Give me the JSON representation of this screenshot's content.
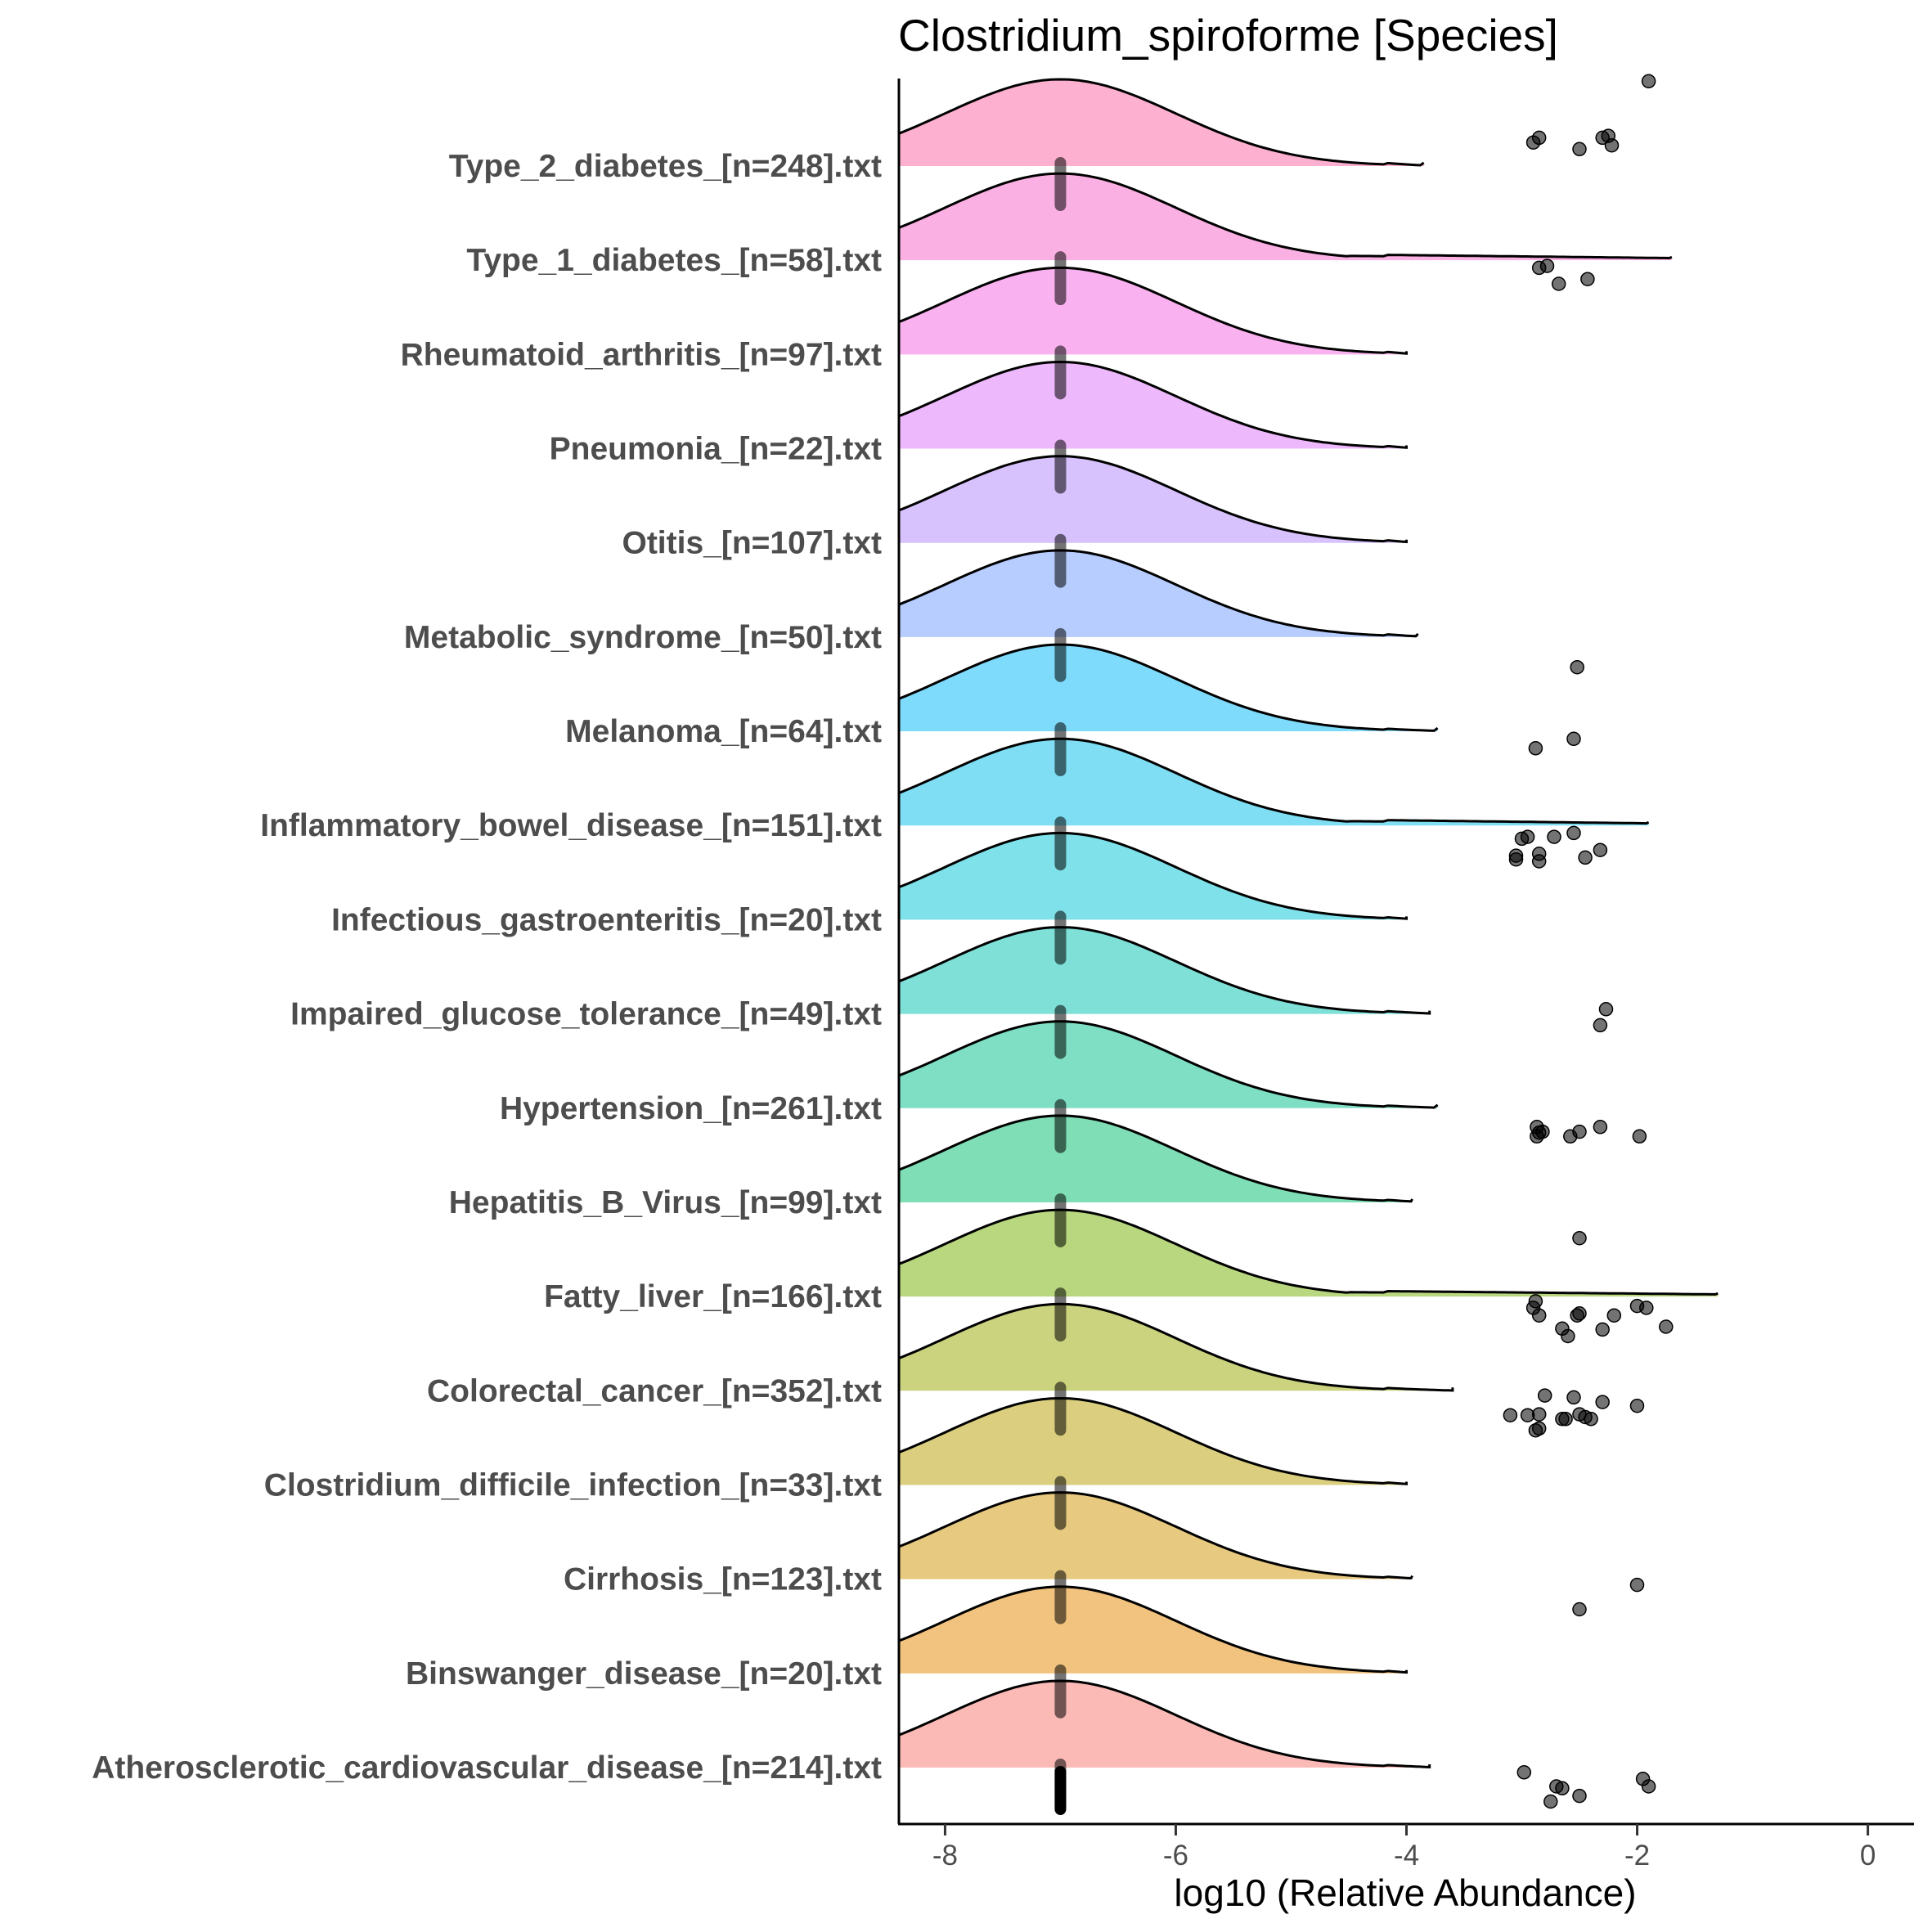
{
  "chart_data": {
    "type": "area",
    "subtype": "ridgeline-density with jittered outlier points",
    "title": "Clostridium_spiroforme [Species]",
    "xlabel": "log10 (Relative Abundance)",
    "ylabel": "",
    "xlim": [
      -8.4,
      0.4
    ],
    "xticks": [
      -8,
      -6,
      -4,
      -2,
      0
    ],
    "xtick_labels": [
      "-8",
      "-6",
      "-4",
      "-2",
      "0"
    ],
    "grid": false,
    "legend": "none",
    "median_x": -7,
    "series": [
      {
        "name": "Type_2_diabetes_[n=248].txt",
        "color": "#FB61A0",
        "tail_end": -3.85,
        "tail_height": 0.06,
        "outliers": [
          [
            -2.9,
            0.25
          ],
          [
            -2.85,
            0.3
          ],
          [
            -2.5,
            0.18
          ],
          [
            -2.3,
            0.3
          ],
          [
            -2.25,
            0.32
          ],
          [
            -2.22,
            0.22
          ],
          [
            -1.9,
            0.9
          ]
        ]
      },
      {
        "name": "Type_1_diabetes_[n=58].txt",
        "color": "#F862C8",
        "tail_end": -1.7,
        "tail_height": 0.05,
        "outliers": [
          [
            -2.85,
            -0.08
          ],
          [
            -2.78,
            -0.06
          ],
          [
            -2.68,
            -0.25
          ],
          [
            -2.43,
            -0.2
          ]
        ]
      },
      {
        "name": "Rheumatoid_arthritis_[n=97].txt",
        "color": "#F563E2",
        "tail_end": -4.0,
        "tail_height": 0.05,
        "outliers": []
      },
      {
        "name": "Pneumonia_[n=22].txt",
        "color": "#DD71FA",
        "tail_end": -4.0,
        "tail_height": 0.05,
        "outliers": []
      },
      {
        "name": "Otitis_[n=107].txt",
        "color": "#B186FE",
        "tail_end": -4.0,
        "tail_height": 0.05,
        "outliers": []
      },
      {
        "name": "Metabolic_syndrome_[n=50].txt",
        "color": "#6F9BFF",
        "tail_end": -3.9,
        "tail_height": 0.05,
        "outliers": []
      },
      {
        "name": "Melanoma_[n=64].txt",
        "color": "#00B8F8",
        "tail_end": -3.73,
        "tail_height": 0.04,
        "outliers": [
          [
            -2.52,
            0.68
          ],
          [
            -2.88,
            -0.18
          ],
          [
            -2.55,
            -0.08
          ]
        ]
      },
      {
        "name": "Inflammatory_bowel_disease_[n=151].txt",
        "color": "#00BEE8",
        "tail_end": -1.9,
        "tail_height": 0.05,
        "outliers": [
          [
            -3.0,
            -0.14
          ],
          [
            -2.95,
            -0.12
          ],
          [
            -2.72,
            -0.12
          ],
          [
            -2.55,
            -0.08
          ],
          [
            -3.05,
            -0.32
          ],
          [
            -2.85,
            -0.3
          ],
          [
            -2.45,
            -0.34
          ],
          [
            -2.32,
            -0.26
          ],
          [
            -3.05,
            -0.36
          ],
          [
            -2.85,
            -0.38
          ]
        ]
      },
      {
        "name": "Infectious_gastroenteritis_[n=20].txt",
        "color": "#00C3D3",
        "tail_end": -4.0,
        "tail_height": 0.04,
        "outliers": []
      },
      {
        "name": "Impaired_glucose_tolerance_[n=49].txt",
        "color": "#00C1B2",
        "tail_end": -3.8,
        "tail_height": 0.05,
        "outliers": [
          [
            -2.27,
            0.05
          ],
          [
            -2.32,
            -0.12
          ]
        ]
      },
      {
        "name": "Hypertension_[n=261].txt",
        "color": "#00C08B",
        "tail_end": -3.73,
        "tail_height": 0.04,
        "outliers": [
          [
            -2.87,
            -0.2
          ],
          [
            -2.85,
            -0.26
          ],
          [
            -2.82,
            -0.25
          ],
          [
            -2.87,
            -0.3
          ],
          [
            -2.58,
            -0.3
          ],
          [
            -2.5,
            -0.25
          ],
          [
            -2.32,
            -0.2
          ],
          [
            -1.98,
            -0.3
          ]
        ]
      },
      {
        "name": "Hepatitis_B_Virus_[n=99].txt",
        "color": "#00BE6C",
        "tail_end": -3.95,
        "tail_height": 0.04,
        "outliers": []
      },
      {
        "name": "Fatty_liver_[n=166].txt",
        "color": "#72B000",
        "tail_end": -1.3,
        "tail_height": 0.05,
        "outliers": [
          [
            -2.5,
            0.62
          ],
          [
            -2.88,
            -0.05
          ],
          [
            -2.9,
            -0.12
          ],
          [
            -2.85,
            -0.2
          ],
          [
            -2.5,
            -0.18
          ],
          [
            -2.52,
            -0.2
          ],
          [
            -2.65,
            -0.34
          ],
          [
            -2.6,
            -0.42
          ],
          [
            -2.3,
            -0.35
          ],
          [
            -2.2,
            -0.2
          ],
          [
            -2.0,
            -0.1
          ],
          [
            -1.92,
            -0.12
          ],
          [
            -1.75,
            -0.32
          ]
        ]
      },
      {
        "name": "Colorectal_cancer_[n=352].txt",
        "color": "#99A800",
        "tail_end": -3.6,
        "tail_height": 0.05,
        "outliers": [
          [
            -2.8,
            -0.05
          ],
          [
            -2.55,
            -0.07
          ],
          [
            -2.3,
            -0.12
          ],
          [
            -2.0,
            -0.16
          ],
          [
            -3.1,
            -0.26
          ],
          [
            -2.95,
            -0.26
          ],
          [
            -2.85,
            -0.25
          ],
          [
            -2.65,
            -0.3
          ],
          [
            -2.62,
            -0.3
          ],
          [
            -2.5,
            -0.25
          ],
          [
            -2.45,
            -0.28
          ],
          [
            -2.4,
            -0.3
          ],
          [
            -2.85,
            -0.4
          ],
          [
            -2.88,
            -0.42
          ]
        ]
      },
      {
        "name": "Clostridium_difficile_infection_[n=33].txt",
        "color": "#B79F00",
        "tail_end": -4.0,
        "tail_height": 0.04,
        "outliers": []
      },
      {
        "name": "Cirrhosis_[n=123].txt",
        "color": "#D09400",
        "tail_end": -3.95,
        "tail_height": 0.04,
        "outliers": [
          [
            -2.0,
            -0.06
          ],
          [
            -2.5,
            -0.32
          ]
        ]
      },
      {
        "name": "Binswanger_disease_[n=20].txt",
        "color": "#E58700",
        "tail_end": -4.0,
        "tail_height": 0.04,
        "outliers": []
      },
      {
        "name": "Atherosclerotic_cardiovascular_disease_[n=214].txt",
        "color": "#F8766D",
        "tail_end": -3.8,
        "tail_height": 0.04,
        "outliers": [
          [
            -2.98,
            -0.05
          ],
          [
            -2.7,
            -0.2
          ],
          [
            -2.65,
            -0.22
          ],
          [
            -2.75,
            -0.36
          ],
          [
            -2.5,
            -0.3
          ],
          [
            -1.95,
            -0.12
          ],
          [
            -1.9,
            -0.2
          ]
        ]
      }
    ]
  }
}
